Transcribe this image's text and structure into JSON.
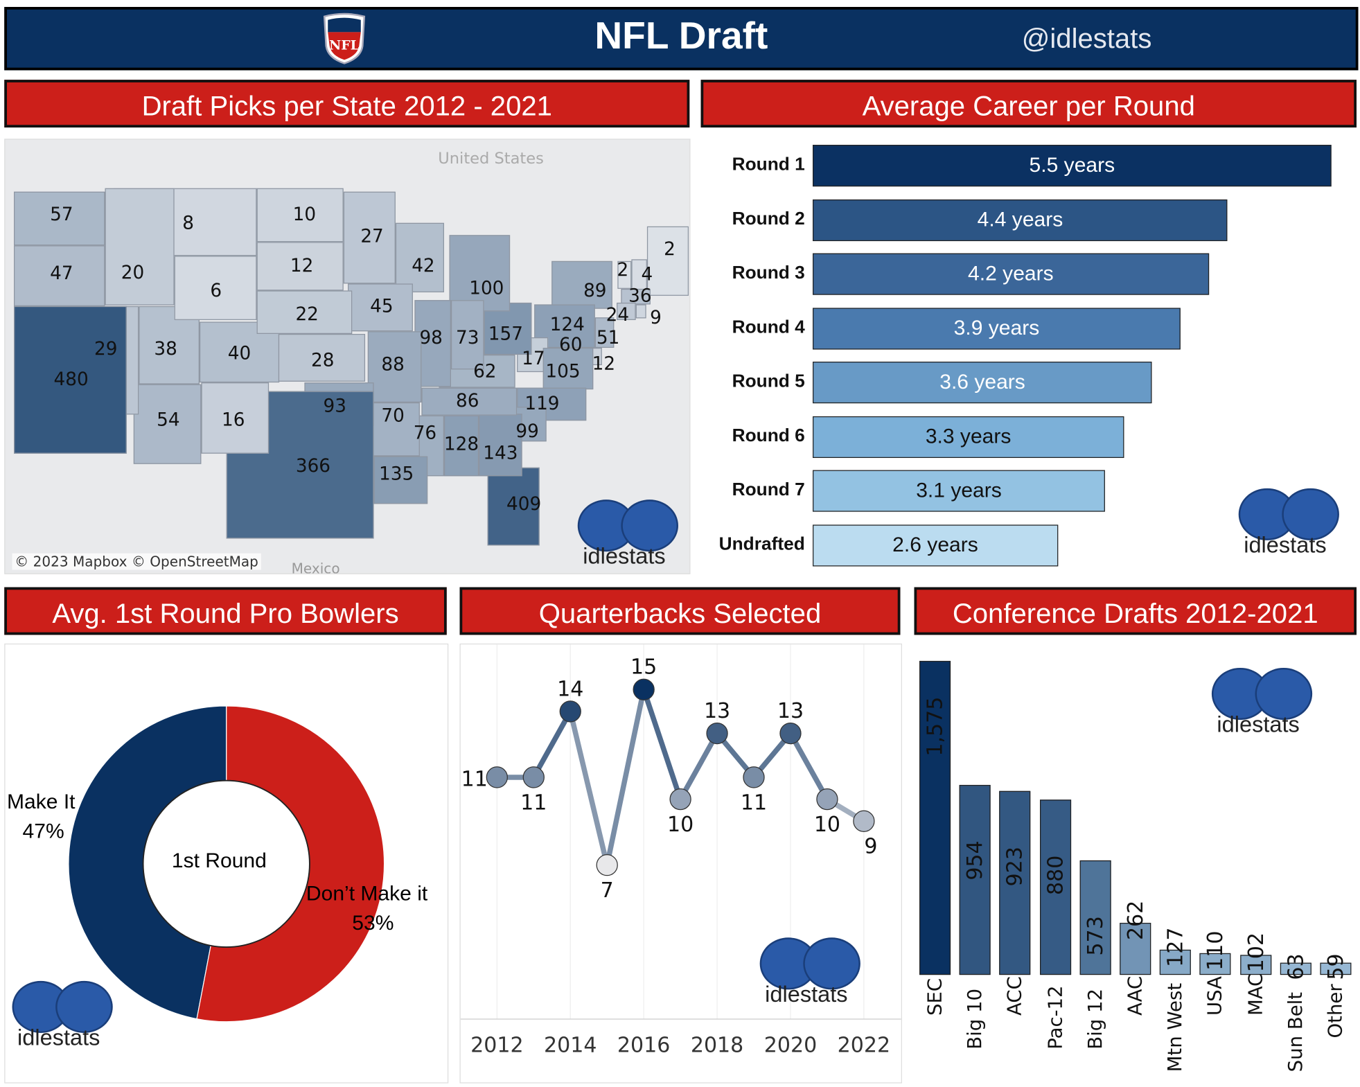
{
  "header": {
    "title": "NFL Draft",
    "handle": "@idlestats",
    "logo_text": "NFL"
  },
  "map_panel": {
    "title": "Draft Picks per State 2012 - 2021",
    "credit": "© 2023 Mapbox © OpenStreetMap",
    "country_label": "United States",
    "neighbor_label": "Mexico",
    "watermark": "idlestats",
    "color_low": "#e8eaee",
    "color_high": "#34587f",
    "states": {
      "WA": 57,
      "OR": 47,
      "ID": 20,
      "MT": 8,
      "WY": 6,
      "ND": 10,
      "SD": 12,
      "NE": 22,
      "KS": 28,
      "CA": 480,
      "NV": 29,
      "UT": 38,
      "CO": 40,
      "AZ": 54,
      "NM": 16,
      "TX": 366,
      "OK": 93,
      "MN": 27,
      "IA": 45,
      "MO": 88,
      "AR": 70,
      "LA": 135,
      "WI": 42,
      "IL": 98,
      "IN": 73,
      "MI": 100,
      "OH": 157,
      "KY": 62,
      "TN": 86,
      "MS": 76,
      "AL": 128,
      "GA": 143,
      "FL": 409,
      "SC": 99,
      "NC": 119,
      "VA": 105,
      "WV": 17,
      "PA": 124,
      "NY": 89,
      "NJ": 51,
      "MD": 60,
      "DE": 12,
      "CT": 24,
      "RI": 9,
      "MA": 36,
      "VT": 2,
      "NH": 4,
      "ME": 2
    }
  },
  "career_panel": {
    "title": "Average Career per Round",
    "watermark": "idlestats",
    "rounds": [
      {
        "label": "Round 1",
        "value": 5.5,
        "text": "5.5 years",
        "color": "#0b3162",
        "text_color": "#ffffff"
      },
      {
        "label": "Round 2",
        "value": 4.4,
        "text": "4.4 years",
        "color": "#2c5585",
        "text_color": "#ffffff"
      },
      {
        "label": "Round 3",
        "value": 4.2,
        "text": "4.2 years",
        "color": "#3b6699",
        "text_color": "#ffffff"
      },
      {
        "label": "Round 4",
        "value": 3.9,
        "text": "3.9 years",
        "color": "#4a7aae",
        "text_color": "#ffffff"
      },
      {
        "label": "Round 5",
        "value": 3.6,
        "text": "3.6 years",
        "color": "#689ac6",
        "text_color": "#ffffff"
      },
      {
        "label": "Round 6",
        "value": 3.3,
        "text": "3.3 years",
        "color": "#7cb0d8",
        "text_color": "#111111"
      },
      {
        "label": "Round 7",
        "value": 3.1,
        "text": "3.1 years",
        "color": "#93c2e2",
        "text_color": "#111111"
      },
      {
        "label": "Undrafted",
        "value": 2.6,
        "text": "2.6 years",
        "color": "#bbdcf0",
        "text_color": "#111111"
      }
    ]
  },
  "probowl_panel": {
    "title": "Avg. 1st Round Pro Bowlers",
    "center_label": "1st Round",
    "watermark": "idlestats",
    "slices": [
      {
        "label": "Make It",
        "pct_text": "47%",
        "value": 47,
        "color": "#0a3161"
      },
      {
        "label": "Don’t Make it",
        "pct_text": "53%",
        "value": 53,
        "color": "#cc1f1a"
      }
    ]
  },
  "qb_panel": {
    "title": "Quarterbacks Selected",
    "watermark": "idlestats",
    "x_ticks": [
      "2012",
      "2014",
      "2016",
      "2018",
      "2020",
      "2022"
    ]
  },
  "conf_panel": {
    "title": "Conference Drafts 2012-2021",
    "watermark": "idlestats"
  },
  "chart_data": [
    {
      "type": "line",
      "title": "Quarterbacks Selected",
      "x": [
        2012,
        2013,
        2014,
        2015,
        2016,
        2017,
        2018,
        2019,
        2020,
        2021,
        2022
      ],
      "values": [
        11,
        11,
        14,
        7,
        15,
        10,
        13,
        11,
        13,
        10,
        9
      ],
      "labels": [
        "11",
        "11",
        "14",
        "7",
        "15",
        "10",
        "13",
        "11",
        "13",
        "10",
        "9"
      ],
      "x_ticks": [
        "2012",
        "2014",
        "2016",
        "2018",
        "2020",
        "2022"
      ],
      "grid": "vertical",
      "color_low": "#e8e8ea",
      "color_high": "#0a3161"
    },
    {
      "type": "bar",
      "title": "Conference Drafts 2012-2021",
      "categories": [
        "SEC",
        "Big 10",
        "ACC",
        "Pac-12",
        "Big 12",
        "AAC",
        "Mtn West",
        "USA",
        "MAC",
        "Sun Belt",
        "Other"
      ],
      "values": [
        1575,
        954,
        923,
        880,
        573,
        262,
        127,
        110,
        102,
        63,
        59
      ],
      "labels": [
        "1,575",
        "954",
        "923",
        "880",
        "573",
        "262",
        "127",
        "110",
        "102",
        "63",
        "59"
      ],
      "ylim": [
        0,
        1575
      ],
      "color_low": "#b9d9ef",
      "color_high": "#0a3161"
    }
  ]
}
